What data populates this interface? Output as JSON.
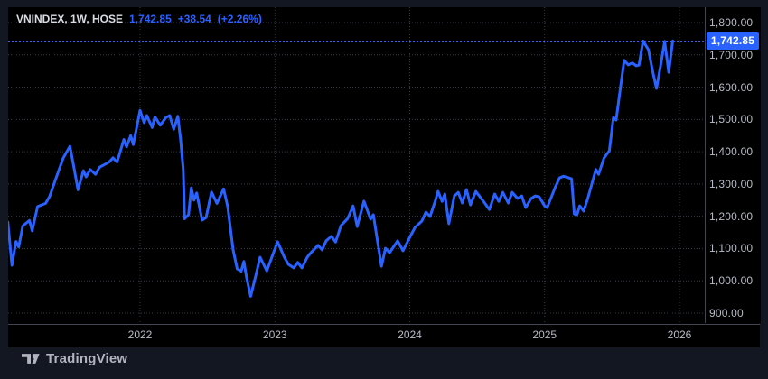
{
  "header": {
    "symbol_text": "VNINDEX, 1W, HOSE",
    "last_price": "1,742.85",
    "change": "+38.54",
    "change_pct": "(+2.26%)"
  },
  "price_label": "1,742.85",
  "footer": {
    "logo_text": "TradingView"
  },
  "colors": {
    "accent": "#2962FF",
    "background": "#131722",
    "chart_bg": "#000000",
    "grid": "#363A45",
    "axis_text": "#B8BBC6",
    "separator": "#434651",
    "badge_text": "#ffffff"
  },
  "chart_data": {
    "type": "line",
    "title": "VNINDEX, 1W, HOSE",
    "legend_position": "top-left",
    "grid": "dotted",
    "x_axis": {
      "tick_years": [
        2022,
        2023,
        2024,
        2025,
        2026
      ],
      "tick_labels": [
        "2022",
        "2023",
        "2024",
        "2025",
        "2026"
      ],
      "range": [
        2021.0,
        2026.15
      ]
    },
    "y_axis": {
      "min": 900,
      "max": 1800,
      "step": 100,
      "tick_values": [
        1800,
        1700,
        1600,
        1500,
        1400,
        1300,
        1200,
        1100,
        1000,
        900
      ],
      "tick_labels": [
        "1,800.00",
        "1,700.00",
        "1,600.00",
        "1,500.00",
        "1,400.00",
        "1,300.00",
        "1,200.00",
        "1,100.00",
        "1,000.00",
        "900.00"
      ]
    },
    "last_value": 1742.85,
    "series": [
      {
        "name": "VNINDEX",
        "color": "#2962FF",
        "points": [
          [
            2021.02,
            1182
          ],
          [
            2021.05,
            1048
          ],
          [
            2021.08,
            1122
          ],
          [
            2021.1,
            1105
          ],
          [
            2021.13,
            1170
          ],
          [
            2021.18,
            1187
          ],
          [
            2021.2,
            1155
          ],
          [
            2021.24,
            1230
          ],
          [
            2021.3,
            1240
          ],
          [
            2021.33,
            1262
          ],
          [
            2021.37,
            1310
          ],
          [
            2021.43,
            1380
          ],
          [
            2021.48,
            1417
          ],
          [
            2021.51,
            1350
          ],
          [
            2021.54,
            1282
          ],
          [
            2021.58,
            1341
          ],
          [
            2021.6,
            1322
          ],
          [
            2021.63,
            1345
          ],
          [
            2021.67,
            1330
          ],
          [
            2021.7,
            1352
          ],
          [
            2021.77,
            1368
          ],
          [
            2021.8,
            1381
          ],
          [
            2021.83,
            1368
          ],
          [
            2021.88,
            1438
          ],
          [
            2021.9,
            1415
          ],
          [
            2021.93,
            1450
          ],
          [
            2021.95,
            1422
          ],
          [
            2022.0,
            1528
          ],
          [
            2022.03,
            1490
          ],
          [
            2022.05,
            1512
          ],
          [
            2022.09,
            1475
          ],
          [
            2022.11,
            1508
          ],
          [
            2022.15,
            1482
          ],
          [
            2022.19,
            1505
          ],
          [
            2022.22,
            1512
          ],
          [
            2022.25,
            1470
          ],
          [
            2022.28,
            1510
          ],
          [
            2022.3,
            1440
          ],
          [
            2022.32,
            1345
          ],
          [
            2022.33,
            1192
          ],
          [
            2022.36,
            1205
          ],
          [
            2022.38,
            1288
          ],
          [
            2022.4,
            1250
          ],
          [
            2022.42,
            1272
          ],
          [
            2022.46,
            1188
          ],
          [
            2022.49,
            1196
          ],
          [
            2022.53,
            1275
          ],
          [
            2022.57,
            1240
          ],
          [
            2022.62,
            1285
          ],
          [
            2022.65,
            1230
          ],
          [
            2022.69,
            1096
          ],
          [
            2022.72,
            1037
          ],
          [
            2022.75,
            1030
          ],
          [
            2022.77,
            1060
          ],
          [
            2022.79,
            1010
          ],
          [
            2022.82,
            952
          ],
          [
            2022.86,
            1020
          ],
          [
            2022.89,
            1073
          ],
          [
            2022.94,
            1031
          ],
          [
            2023.02,
            1121
          ],
          [
            2023.07,
            1073
          ],
          [
            2023.1,
            1051
          ],
          [
            2023.14,
            1040
          ],
          [
            2023.17,
            1057
          ],
          [
            2023.2,
            1040
          ],
          [
            2023.24,
            1073
          ],
          [
            2023.26,
            1084
          ],
          [
            2023.32,
            1110
          ],
          [
            2023.35,
            1096
          ],
          [
            2023.38,
            1124
          ],
          [
            2023.42,
            1138
          ],
          [
            2023.45,
            1120
          ],
          [
            2023.49,
            1171
          ],
          [
            2023.54,
            1193
          ],
          [
            2023.58,
            1232
          ],
          [
            2023.61,
            1168
          ],
          [
            2023.66,
            1247
          ],
          [
            2023.71,
            1191
          ],
          [
            2023.73,
            1205
          ],
          [
            2023.79,
            1045
          ],
          [
            2023.82,
            1101
          ],
          [
            2023.85,
            1087
          ],
          [
            2023.91,
            1124
          ],
          [
            2023.95,
            1093
          ],
          [
            2024.01,
            1143
          ],
          [
            2024.04,
            1166
          ],
          [
            2024.09,
            1185
          ],
          [
            2024.12,
            1213
          ],
          [
            2024.15,
            1199
          ],
          [
            2024.19,
            1249
          ],
          [
            2024.21,
            1277
          ],
          [
            2024.24,
            1246
          ],
          [
            2024.26,
            1269
          ],
          [
            2024.29,
            1177
          ],
          [
            2024.33,
            1263
          ],
          [
            2024.36,
            1274
          ],
          [
            2024.39,
            1241
          ],
          [
            2024.42,
            1283
          ],
          [
            2024.45,
            1235
          ],
          [
            2024.49,
            1277
          ],
          [
            2024.54,
            1250
          ],
          [
            2024.59,
            1221
          ],
          [
            2024.63,
            1269
          ],
          [
            2024.66,
            1246
          ],
          [
            2024.69,
            1274
          ],
          [
            2024.73,
            1241
          ],
          [
            2024.76,
            1274
          ],
          [
            2024.8,
            1255
          ],
          [
            2024.83,
            1263
          ],
          [
            2024.86,
            1227
          ],
          [
            2024.9,
            1255
          ],
          [
            2024.93,
            1263
          ],
          [
            2024.96,
            1260
          ],
          [
            2025.0,
            1232
          ],
          [
            2025.02,
            1227
          ],
          [
            2025.04,
            1249
          ],
          [
            2025.08,
            1291
          ],
          [
            2025.11,
            1319
          ],
          [
            2025.14,
            1324
          ],
          [
            2025.18,
            1319
          ],
          [
            2025.2,
            1316
          ],
          [
            2025.22,
            1207
          ],
          [
            2025.24,
            1205
          ],
          [
            2025.26,
            1232
          ],
          [
            2025.29,
            1216
          ],
          [
            2025.32,
            1255
          ],
          [
            2025.35,
            1300
          ],
          [
            2025.38,
            1345
          ],
          [
            2025.4,
            1330
          ],
          [
            2025.44,
            1380
          ],
          [
            2025.48,
            1403
          ],
          [
            2025.51,
            1506
          ],
          [
            2025.53,
            1498
          ],
          [
            2025.56,
            1590
          ],
          [
            2025.59,
            1683
          ],
          [
            2025.62,
            1669
          ],
          [
            2025.65,
            1675
          ],
          [
            2025.68,
            1666
          ],
          [
            2025.7,
            1668
          ],
          [
            2025.73,
            1743
          ],
          [
            2025.77,
            1716
          ],
          [
            2025.8,
            1652
          ],
          [
            2025.83,
            1596
          ],
          [
            2025.86,
            1666
          ],
          [
            2025.89,
            1742
          ],
          [
            2025.92,
            1646
          ],
          [
            2025.95,
            1742.85
          ]
        ]
      }
    ]
  }
}
